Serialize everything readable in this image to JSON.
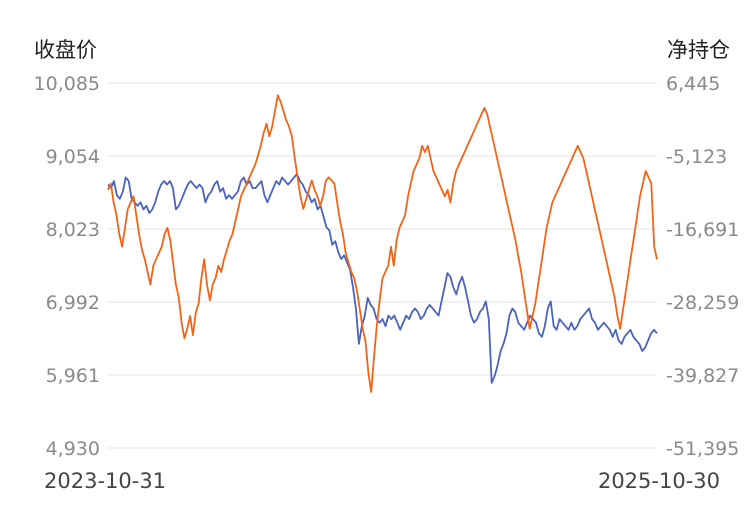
{
  "chart_data": {
    "type": "line",
    "left_axis_title": "收盘价",
    "right_axis_title": "净持仓",
    "left_ticks": [
      "10,085",
      "9,054",
      "8,023",
      "6,992",
      "5,961",
      "4,930"
    ],
    "right_ticks": [
      "6,445",
      "-5,123",
      "-16,691",
      "-28,259",
      "-39,827",
      "-51,395"
    ],
    "left_range": [
      4930,
      10085
    ],
    "right_range": [
      -51395,
      6445
    ],
    "x_start_label": "2023-10-31",
    "x_end_label": "2025-10-30",
    "grid": true,
    "series": [
      {
        "axis": "left",
        "color": "#4a62c0",
        "values": [
          8650,
          8600,
          8700,
          8500,
          8450,
          8550,
          8750,
          8700,
          8450,
          8400,
          8350,
          8400,
          8300,
          8350,
          8250,
          8300,
          8400,
          8550,
          8650,
          8700,
          8650,
          8700,
          8600,
          8300,
          8350,
          8450,
          8550,
          8650,
          8700,
          8650,
          8600,
          8650,
          8600,
          8400,
          8500,
          8550,
          8650,
          8700,
          8550,
          8600,
          8450,
          8500,
          8450,
          8500,
          8550,
          8700,
          8750,
          8650,
          8700,
          8600,
          8600,
          8650,
          8700,
          8500,
          8400,
          8500,
          8600,
          8700,
          8650,
          8750,
          8700,
          8650,
          8700,
          8750,
          8800,
          8700,
          8650,
          8550,
          8500,
          8400,
          8450,
          8300,
          8350,
          8200,
          8050,
          8000,
          7800,
          7850,
          7700,
          7600,
          7650,
          7550,
          7450,
          7200,
          6900,
          6400,
          6650,
          6800,
          7050,
          6950,
          6900,
          6750,
          6700,
          6750,
          6650,
          6800,
          6750,
          6800,
          6700,
          6600,
          6700,
          6800,
          6750,
          6850,
          6900,
          6850,
          6750,
          6800,
          6900,
          6950,
          6900,
          6850,
          6800,
          7000,
          7200,
          7400,
          7350,
          7200,
          7100,
          7250,
          7350,
          7200,
          7000,
          6800,
          6700,
          6750,
          6850,
          6900,
          7000,
          6750,
          5850,
          5950,
          6100,
          6300,
          6400,
          6550,
          6800,
          6900,
          6850,
          6700,
          6650,
          6600,
          6700,
          6800,
          6750,
          6700,
          6550,
          6500,
          6650,
          6900,
          7000,
          6650,
          6600,
          6750,
          6700,
          6650,
          6600,
          6700,
          6600,
          6650,
          6750,
          6800,
          6850,
          6900,
          6750,
          6700,
          6600,
          6650,
          6700,
          6650,
          6600,
          6500,
          6600,
          6450,
          6400,
          6500,
          6550,
          6600,
          6500,
          6450,
          6400,
          6300,
          6350,
          6450,
          6550,
          6600,
          6550
        ]
      },
      {
        "axis": "right",
        "color": "#f26418",
        "values": [
          -10500,
          -9500,
          -12500,
          -14500,
          -17500,
          -19500,
          -16500,
          -13500,
          -12500,
          -11500,
          -14500,
          -17500,
          -20000,
          -21500,
          -23500,
          -25500,
          -22500,
          -21500,
          -20500,
          -19500,
          -17500,
          -16500,
          -18500,
          -22000,
          -25500,
          -27500,
          -31500,
          -34000,
          -32500,
          -30500,
          -33500,
          -30000,
          -28500,
          -24500,
          -21500,
          -25500,
          -28000,
          -25500,
          -24500,
          -22500,
          -23500,
          -21500,
          -20000,
          -18500,
          -17500,
          -15500,
          -13500,
          -11500,
          -10500,
          -9500,
          -8500,
          -7500,
          -6500,
          -5000,
          -3500,
          -1500,
          0,
          -2000,
          -500,
          2000,
          4500,
          3500,
          2000,
          500,
          -500,
          -2000,
          -5500,
          -8500,
          -11500,
          -13500,
          -12000,
          -10500,
          -9000,
          -10500,
          -11500,
          -13000,
          -11500,
          -9000,
          -8500,
          -9000,
          -9500,
          -12500,
          -15500,
          -17500,
          -20500,
          -22000,
          -23500,
          -24500,
          -26500,
          -29500,
          -32500,
          -34500,
          -39500,
          -42500,
          -37000,
          -32000,
          -28000,
          -24500,
          -23500,
          -22500,
          -19500,
          -22500,
          -18500,
          -16500,
          -15500,
          -14500,
          -11500,
          -9500,
          -7500,
          -6500,
          -5500,
          -3500,
          -4500,
          -3500,
          -5500,
          -7500,
          -8500,
          -9500,
          -10500,
          -11500,
          -10500,
          -12500,
          -9500,
          -7500,
          -6500,
          -5500,
          -4500,
          -3500,
          -2500,
          -1500,
          -500,
          500,
          1500,
          2500,
          1500,
          -500,
          -2500,
          -4500,
          -6500,
          -8500,
          -10500,
          -12500,
          -14500,
          -16500,
          -18500,
          -21000,
          -23500,
          -26500,
          -29500,
          -32500,
          -30500,
          -28500,
          -25500,
          -22500,
          -19500,
          -16500,
          -14500,
          -12500,
          -11500,
          -10500,
          -9500,
          -8500,
          -7500,
          -6500,
          -5500,
          -4500,
          -3500,
          -4500,
          -5500,
          -7500,
          -9500,
          -11500,
          -13500,
          -15500,
          -17500,
          -19500,
          -21500,
          -23500,
          -25500,
          -27500,
          -30500,
          -32500,
          -29500,
          -26500,
          -23500,
          -20500,
          -17500,
          -14500,
          -11500,
          -9500,
          -7500,
          -8500,
          -9500,
          -19500,
          -21500
        ]
      }
    ]
  }
}
